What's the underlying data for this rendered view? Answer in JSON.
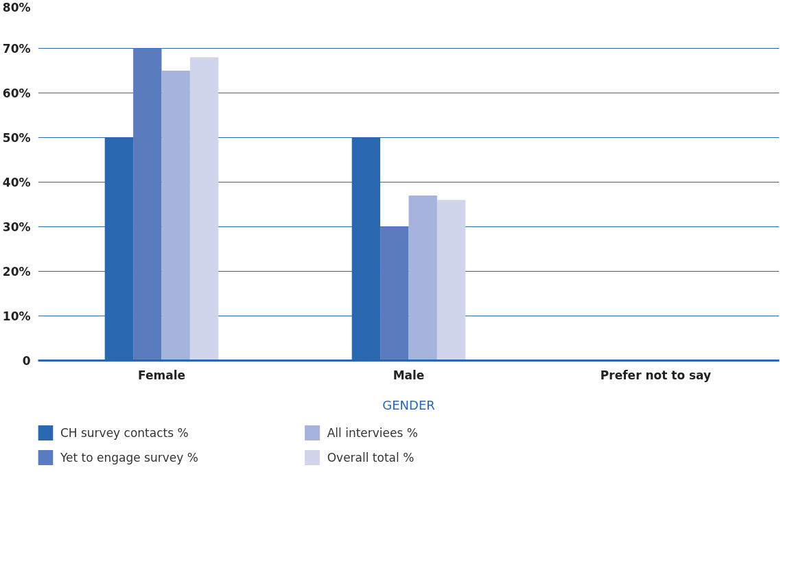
{
  "chart_data": {
    "type": "bar",
    "xlabel": "GENDER",
    "categories": [
      "Female",
      "Male",
      "Prefer not to say"
    ],
    "series": [
      {
        "name": "CH survey contacts %",
        "color": "#2a67b1",
        "values": [
          50,
          50,
          0
        ]
      },
      {
        "name": "Yet to engage survey %",
        "color": "#5b7bbf",
        "values": [
          70,
          30,
          0
        ]
      },
      {
        "name": "All interviees %",
        "color": "#a6b3dc",
        "values": [
          65,
          37,
          0
        ]
      },
      {
        "name": "Overall total %",
        "color": "#d0d5ec",
        "values": [
          68,
          36,
          0
        ]
      }
    ],
    "ylim": [
      0,
      80
    ],
    "yticks": [
      {
        "value": 0,
        "label": "0"
      },
      {
        "value": 10,
        "label": "10%"
      },
      {
        "value": 20,
        "label": "20%"
      },
      {
        "value": 30,
        "label": "30%"
      },
      {
        "value": 40,
        "label": "40%"
      },
      {
        "value": 50,
        "label": "50%"
      },
      {
        "value": 60,
        "label": "60%"
      },
      {
        "value": 70,
        "label": "70%"
      },
      {
        "value": 80,
        "label": "80%"
      }
    ],
    "grid": "y",
    "legend": "bottom"
  }
}
